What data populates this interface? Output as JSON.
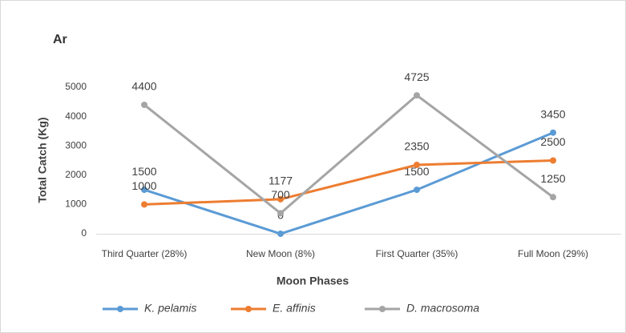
{
  "chart_data": {
    "type": "line",
    "title": "Ar",
    "x_label": "Moon Phases",
    "y_label": "Total Catch (Kg)",
    "categories": [
      "Third Quarter  (28%)",
      "New Moon  (8%)",
      "First Quarter  (35%)",
      "Full Moon  (29%)"
    ],
    "series": [
      {
        "name": "K. pelamis",
        "color": "#5b9bd5",
        "values": [
          1500,
          0,
          1500,
          3450
        ]
      },
      {
        "name": "E. affinis",
        "color": "#ed7d31",
        "values": [
          1000,
          1177,
          2350,
          2500
        ]
      },
      {
        "name": "D. macrosoma",
        "color": "#a5a5a5",
        "values": [
          4400,
          700,
          4725,
          1250
        ]
      }
    ],
    "ylim": [
      0,
      5000
    ],
    "yticks": [
      0,
      1000,
      2000,
      3000,
      4000,
      5000
    ],
    "grid": false,
    "legend": "bottom"
  }
}
